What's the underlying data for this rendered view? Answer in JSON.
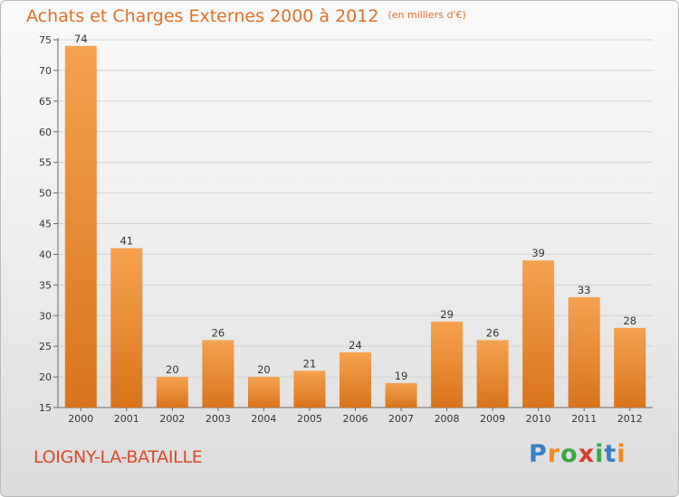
{
  "title": "Achats et Charges Externes 2000 à 2012",
  "subtitle": "(en milliers d'€)",
  "commune": "LOIGNY-LA-BATAILLE",
  "logo": {
    "letters": [
      "P",
      "r",
      "o",
      "x",
      "i",
      "t",
      "i"
    ],
    "colors": [
      "#3a7fc1",
      "#f08a1e",
      "#3aa846",
      "#d93c2c",
      "#3aa846",
      "#3a7fc1",
      "#f08a1e"
    ]
  },
  "colors": {
    "bar_top": "#f5a24f",
    "bar_bottom": "#d9741c",
    "title": "#e0702a",
    "commune": "#d94a2c"
  },
  "chart_data": {
    "type": "bar",
    "title": "Achats et Charges Externes 2000 à 2012",
    "subtitle": "(en milliers d'€)",
    "categories": [
      "2000",
      "2001",
      "2002",
      "2003",
      "2004",
      "2005",
      "2006",
      "2007",
      "2008",
      "2009",
      "2010",
      "2011",
      "2012"
    ],
    "values": [
      74,
      41,
      20,
      26,
      20,
      21,
      24,
      19,
      29,
      26,
      39,
      33,
      28
    ],
    "ylim": [
      15,
      75
    ],
    "yticks": [
      15,
      20,
      25,
      30,
      35,
      40,
      45,
      50,
      55,
      60,
      65,
      70,
      75
    ],
    "grid": "horizontal",
    "xlabel": "",
    "ylabel": ""
  }
}
